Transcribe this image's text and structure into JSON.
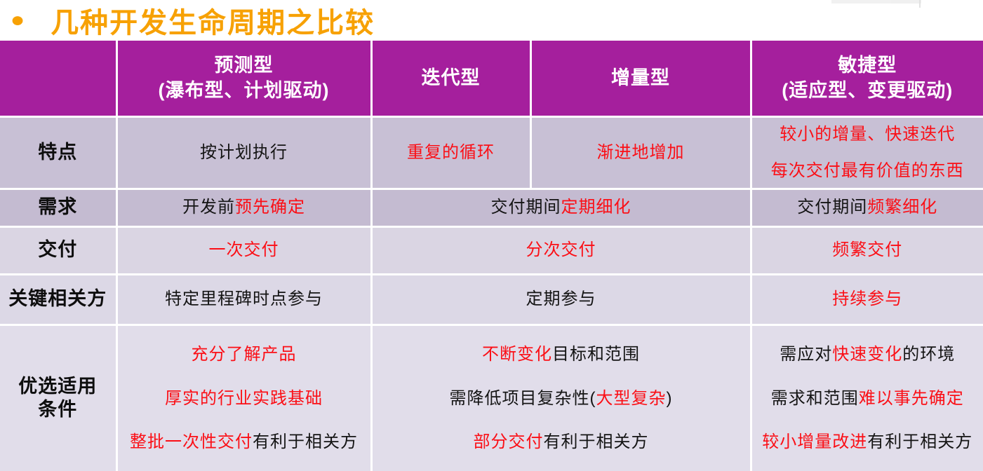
{
  "title": {
    "bullet": "●",
    "text": "几种开发生命周期之比较"
  },
  "colors": {
    "header_bg": "#A51F9D",
    "red": "#FB0F16",
    "orange": "#F7A104",
    "row_bg": [
      "#C8C0D5",
      "#C4BBD1",
      "#DAD5E3",
      "#DCD8E6",
      "#E1DDEA"
    ]
  },
  "table": {
    "headers": [
      {
        "lines": [
          ""
        ]
      },
      {
        "lines": [
          "预测型",
          "(瀑布型、计划驱动)"
        ]
      },
      {
        "lines": [
          "迭代型"
        ]
      },
      {
        "lines": [
          "增量型"
        ]
      },
      {
        "lines": [
          "敏捷型",
          "(适应型、变更驱动)"
        ]
      }
    ],
    "rows": [
      {
        "label_lines": [
          "特点"
        ],
        "cells": [
          {
            "span": 1,
            "lines": [
              [
                {
                  "t": "按计划执行"
                }
              ]
            ]
          },
          {
            "span": 1,
            "lines": [
              [
                {
                  "t": "重复的循环",
                  "red": true
                }
              ]
            ]
          },
          {
            "span": 1,
            "lines": [
              [
                {
                  "t": "渐进地增加",
                  "red": true
                }
              ]
            ]
          },
          {
            "span": 1,
            "lines": [
              [
                {
                  "t": "较小的增量、快速迭代",
                  "red": true
                }
              ],
              [
                {
                  "t": "每次交付最有价值的东西",
                  "red": true
                }
              ]
            ]
          }
        ]
      },
      {
        "label_lines": [
          "需求"
        ],
        "cells": [
          {
            "span": 1,
            "lines": [
              [
                {
                  "t": "开发前"
                },
                {
                  "t": "预先确定",
                  "red": true
                }
              ]
            ]
          },
          {
            "span": 2,
            "lines": [
              [
                {
                  "t": "交付期间"
                },
                {
                  "t": "定期细化",
                  "red": true
                }
              ]
            ]
          },
          {
            "span": 1,
            "lines": [
              [
                {
                  "t": "交付期间"
                },
                {
                  "t": "频繁细化",
                  "red": true
                }
              ]
            ]
          }
        ]
      },
      {
        "label_lines": [
          "交付"
        ],
        "cells": [
          {
            "span": 1,
            "lines": [
              [
                {
                  "t": "一次交付",
                  "red": true
                }
              ]
            ]
          },
          {
            "span": 2,
            "lines": [
              [
                {
                  "t": "分次交付",
                  "red": true
                }
              ]
            ]
          },
          {
            "span": 1,
            "lines": [
              [
                {
                  "t": "频繁交付",
                  "red": true
                }
              ]
            ]
          }
        ]
      },
      {
        "label_lines": [
          "关键相关方"
        ],
        "cells": [
          {
            "span": 1,
            "lines": [
              [
                {
                  "t": "特定里程碑时点参与"
                }
              ]
            ]
          },
          {
            "span": 2,
            "lines": [
              [
                {
                  "t": "定期参与"
                }
              ]
            ]
          },
          {
            "span": 1,
            "lines": [
              [
                {
                  "t": "持续参与",
                  "red": true
                }
              ]
            ]
          }
        ]
      },
      {
        "label_lines": [
          "优选适用",
          "条件"
        ],
        "cells": [
          {
            "span": 1,
            "lines": [
              [
                {
                  "t": "充分了解产品",
                  "red": true
                }
              ],
              [
                {
                  "t": "厚实的行业实践基础",
                  "red": true
                }
              ],
              [
                {
                  "t": "整批一次性交付",
                  "red": true
                },
                {
                  "t": "有利于相关方"
                }
              ]
            ]
          },
          {
            "span": 2,
            "lines": [
              [
                {
                  "t": "不断变化",
                  "red": true
                },
                {
                  "t": "目标和范围"
                }
              ],
              [
                {
                  "t": "需降低项目复杂性("
                },
                {
                  "t": "大型复杂",
                  "red": true
                },
                {
                  "t": ")"
                }
              ],
              [
                {
                  "t": "部分交付",
                  "red": true
                },
                {
                  "t": "有利于相关方"
                }
              ]
            ]
          },
          {
            "span": 1,
            "lines": [
              [
                {
                  "t": "需应对"
                },
                {
                  "t": "快速变化",
                  "red": true
                },
                {
                  "t": "的环境"
                }
              ],
              [
                {
                  "t": "需求和范围"
                },
                {
                  "t": "难以事先确定",
                  "red": true
                }
              ],
              [
                {
                  "t": "较小增量改进",
                  "red": true
                },
                {
                  "t": "有利于相关方"
                }
              ]
            ]
          }
        ]
      }
    ]
  }
}
